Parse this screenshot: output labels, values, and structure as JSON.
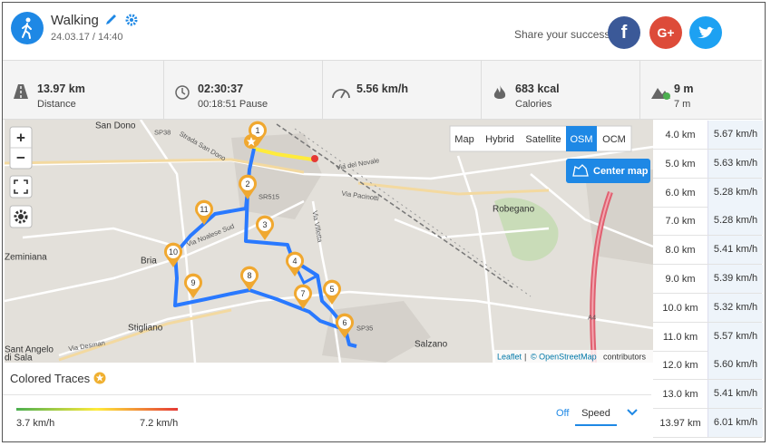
{
  "header": {
    "activity": "Walking",
    "datetime": "24.03.17 / 14:40",
    "share_text": "Share your success",
    "share_buttons": [
      "f",
      "G+"
    ]
  },
  "stats": [
    {
      "value": "13.97 km",
      "label": "Distance"
    },
    {
      "value": "02:30:37",
      "label": "00:18:51 Pause"
    },
    {
      "value": "5.56 km/h"
    },
    {
      "value": "683 kcal",
      "label": "Calories"
    },
    {
      "value": "9 m",
      "label": "7 m"
    }
  ],
  "map": {
    "zoom": [
      "+",
      "−"
    ],
    "layers": [
      "Map",
      "Hybrid",
      "Satellite",
      "OSM",
      "OCM"
    ],
    "selected_layer": "OSM",
    "center_button": "Center map",
    "attribution": {
      "leaflet": "Leaflet",
      "osm": "© OpenStreetMap",
      "suffix": "contributors"
    },
    "places": [
      "San Dono",
      "Zeminiana",
      "Stigliano",
      "Salzano",
      "Robegano",
      "Bria",
      "Sant Angelo",
      "di Sala",
      "SP38",
      "SR515",
      "Via del Novale",
      "Via Pacinotti",
      "Via Noalese Sud",
      "SP35",
      "Via Desman",
      "A4",
      "Via Villetta",
      "Strada San Dono"
    ],
    "markers": [
      "1",
      "2",
      "3",
      "4",
      "5",
      "6",
      "7",
      "8",
      "9",
      "10",
      "11"
    ]
  },
  "traces": {
    "title": "Colored Traces",
    "min": "3.7 km/h",
    "max": "7.2 km/h",
    "off": "Off",
    "mode": "Speed"
  },
  "splits": [
    [
      "4.0 km",
      "5.67 km/h"
    ],
    [
      "5.0 km",
      "5.63 km/h"
    ],
    [
      "6.0 km",
      "5.28 km/h"
    ],
    [
      "7.0 km",
      "5.28 km/h"
    ],
    [
      "8.0 km",
      "5.41 km/h"
    ],
    [
      "9.0 km",
      "5.39 km/h"
    ],
    [
      "10.0 km",
      "5.32 km/h"
    ],
    [
      "11.0 km",
      "5.57 km/h"
    ],
    [
      "12.0 km",
      "5.60 km/h"
    ],
    [
      "13.0 km",
      "5.41 km/h"
    ],
    [
      "13.97 km",
      "6.01 km/h"
    ]
  ]
}
